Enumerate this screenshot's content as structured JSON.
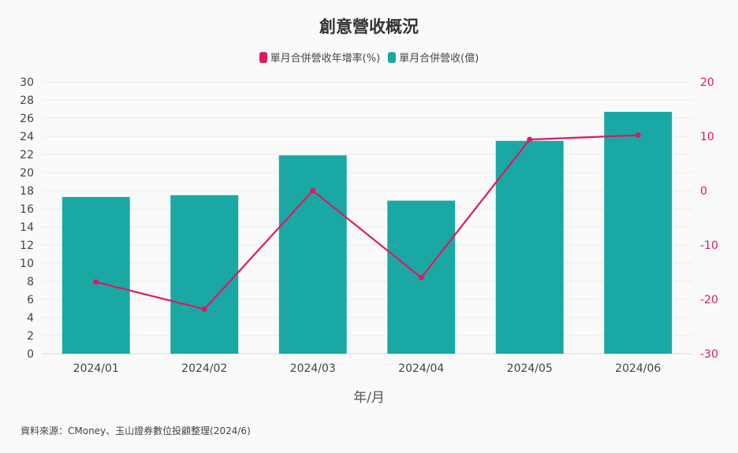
{
  "chart_data": {
    "type": "bar",
    "title": "創意營收概況",
    "xlabel": "年/月",
    "categories": [
      "2024/01",
      "2024/02",
      "2024/03",
      "2024/04",
      "2024/05",
      "2024/06"
    ],
    "series": [
      {
        "name": "單月合併營收(億)",
        "type": "bar",
        "axis": "left",
        "color": "#1aa8a5",
        "values": [
          17.3,
          17.5,
          21.9,
          16.9,
          23.5,
          26.7
        ]
      },
      {
        "name": "單月合併營收年增率(%)",
        "type": "line",
        "axis": "right",
        "color": "#e0195f",
        "values": [
          -16.8,
          -21.8,
          0.0,
          -16.0,
          9.4,
          10.2
        ]
      }
    ],
    "y_left": {
      "range": [
        0,
        30
      ],
      "ticks": [
        0,
        2,
        4,
        6,
        8,
        10,
        12,
        14,
        16,
        18,
        20,
        22,
        24,
        26,
        28,
        30
      ]
    },
    "y_right": {
      "range": [
        -30,
        20
      ],
      "ticks": [
        -30,
        -20,
        -10,
        0,
        10,
        20
      ]
    },
    "grid": true,
    "legend": "top-center"
  },
  "source": "資料來源：CMoney、玉山證券數位投顧整理(2024/6)"
}
